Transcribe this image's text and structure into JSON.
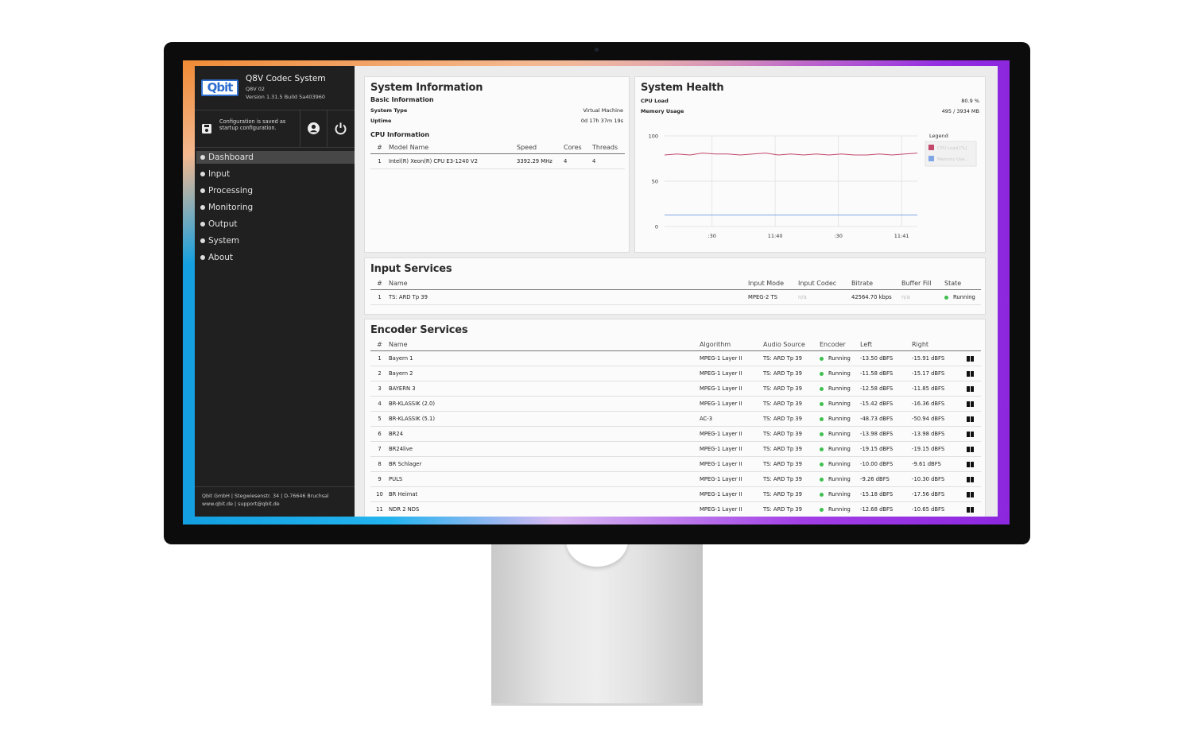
{
  "sidebar": {
    "brand": "Qbit",
    "product": "Q8V Codec System",
    "model": "Q8V 02",
    "version": "Version 1.31.5 Build 5a403960",
    "config_note": "Configuration is saved as startup configuration.",
    "nav": [
      "Dashboard",
      "Input",
      "Processing",
      "Monitoring",
      "Output",
      "System",
      "About"
    ],
    "footer": [
      "Qbit GmbH | Stegwiesenstr. 34 | D-76646 Bruchsal",
      "www.qbit.de | support@qbit.de"
    ]
  },
  "system_information": {
    "title": "System Information",
    "basic_title": "Basic Information",
    "rows": [
      [
        "System Type",
        "Virtual Machine"
      ],
      [
        "Uptime",
        "0d 17h 37m 19s"
      ]
    ],
    "cpu_title": "CPU Information",
    "cpu_table": {
      "header": [
        "#",
        "Model Name",
        "Speed",
        "Cores",
        "Threads"
      ],
      "rows": [
        [
          "1",
          "Intel(R) Xeon(R) CPU E3-1240 V2",
          "3392.29 MHz",
          "4",
          "4"
        ]
      ]
    }
  },
  "system_health": {
    "title": "System Health",
    "stats": [
      [
        "CPU Load",
        "80.9 %"
      ],
      [
        "Memory Usage",
        "495 / 3934 MB"
      ]
    ],
    "chart": {
      "type": "line",
      "ylim": [
        0,
        100
      ],
      "yticks": [
        0,
        50,
        100
      ],
      "xlim": [
        0,
        40
      ],
      "xticks": [
        {
          "value": 7.5,
          "label": ":30"
        },
        {
          "value": 17.5,
          "label": "11:40"
        },
        {
          "value": 27.5,
          "label": ":30"
        },
        {
          "value": 37.5,
          "label": "11:41"
        }
      ],
      "grid": true,
      "legend_title": "Legend",
      "x": [
        0,
        2,
        4,
        6,
        8,
        10,
        12,
        14,
        16,
        18,
        20,
        22,
        24,
        26,
        28,
        30,
        32,
        34,
        36,
        38,
        40
      ],
      "series": [
        {
          "name": "CPU Load [%]",
          "color": "#c2496c",
          "values": [
            79,
            80,
            79,
            81,
            80,
            80,
            79,
            80,
            81,
            79,
            80,
            79,
            80,
            79,
            80,
            79,
            79,
            80,
            79,
            80,
            81
          ]
        },
        {
          "name": "Memory Usa...",
          "color": "#7fa6e6",
          "values": [
            12.6,
            12.6,
            12.6,
            12.6,
            12.6,
            12.6,
            12.6,
            12.6,
            12.6,
            12.6,
            12.6,
            12.6,
            12.6,
            12.6,
            12.6,
            12.6,
            12.6,
            12.6,
            12.6,
            12.6,
            12.6
          ]
        }
      ]
    }
  },
  "input_services": {
    "title": "Input Services",
    "header": [
      "#",
      "Name",
      "Input Mode",
      "Input Codec",
      "Bitrate",
      "Buffer Fill",
      "State"
    ],
    "rows": [
      [
        "1",
        "TS: ARD Tp 39",
        "MPEG-2 TS",
        "n/a",
        "42564.70 kbps",
        "n/a",
        "Running"
      ]
    ]
  },
  "encoder_services": {
    "title": "Encoder Services",
    "header": [
      "#",
      "Name",
      "Algorithm",
      "Audio Source",
      "Encoder",
      "Left",
      "Right"
    ],
    "rows": [
      [
        "1",
        "Bayern 1",
        "MPEG-1 Layer II",
        "TS: ARD Tp 39",
        "Running",
        "-13.50 dBFS",
        "-15.91 dBFS"
      ],
      [
        "2",
        "Bayern 2",
        "MPEG-1 Layer II",
        "TS: ARD Tp 39",
        "Running",
        "-11.58 dBFS",
        "-15.17 dBFS"
      ],
      [
        "3",
        "BAYERN 3",
        "MPEG-1 Layer II",
        "TS: ARD Tp 39",
        "Running",
        "-12.58 dBFS",
        "-11.85 dBFS"
      ],
      [
        "4",
        "BR-KLASSIK (2.0)",
        "MPEG-1 Layer II",
        "TS: ARD Tp 39",
        "Running",
        "-15.42 dBFS",
        "-16.36 dBFS"
      ],
      [
        "5",
        "BR-KLASSIK (5.1)",
        "AC-3",
        "TS: ARD Tp 39",
        "Running",
        "-48.73 dBFS",
        "-50.94 dBFS"
      ],
      [
        "6",
        "BR24",
        "MPEG-1 Layer II",
        "TS: ARD Tp 39",
        "Running",
        "-13.98 dBFS",
        "-13.98 dBFS"
      ],
      [
        "7",
        "BR24live",
        "MPEG-1 Layer II",
        "TS: ARD Tp 39",
        "Running",
        "-19.15 dBFS",
        "-19.15 dBFS"
      ],
      [
        "8",
        "BR Schlager",
        "MPEG-1 Layer II",
        "TS: ARD Tp 39",
        "Running",
        "-10.00 dBFS",
        "-9.61 dBFS"
      ],
      [
        "9",
        "PULS",
        "MPEG-1 Layer II",
        "TS: ARD Tp 39",
        "Running",
        "-9.26 dBFS",
        "-10.30 dBFS"
      ],
      [
        "10",
        "BR Heimat",
        "MPEG-1 Layer II",
        "TS: ARD Tp 39",
        "Running",
        "-15.18 dBFS",
        "-17.56 dBFS"
      ],
      [
        "11",
        "NDR 2 NDS",
        "MPEG-1 Layer II",
        "TS: ARD Tp 39",
        "Running",
        "-12.68 dBFS",
        "-10.65 dBFS"
      ]
    ]
  }
}
